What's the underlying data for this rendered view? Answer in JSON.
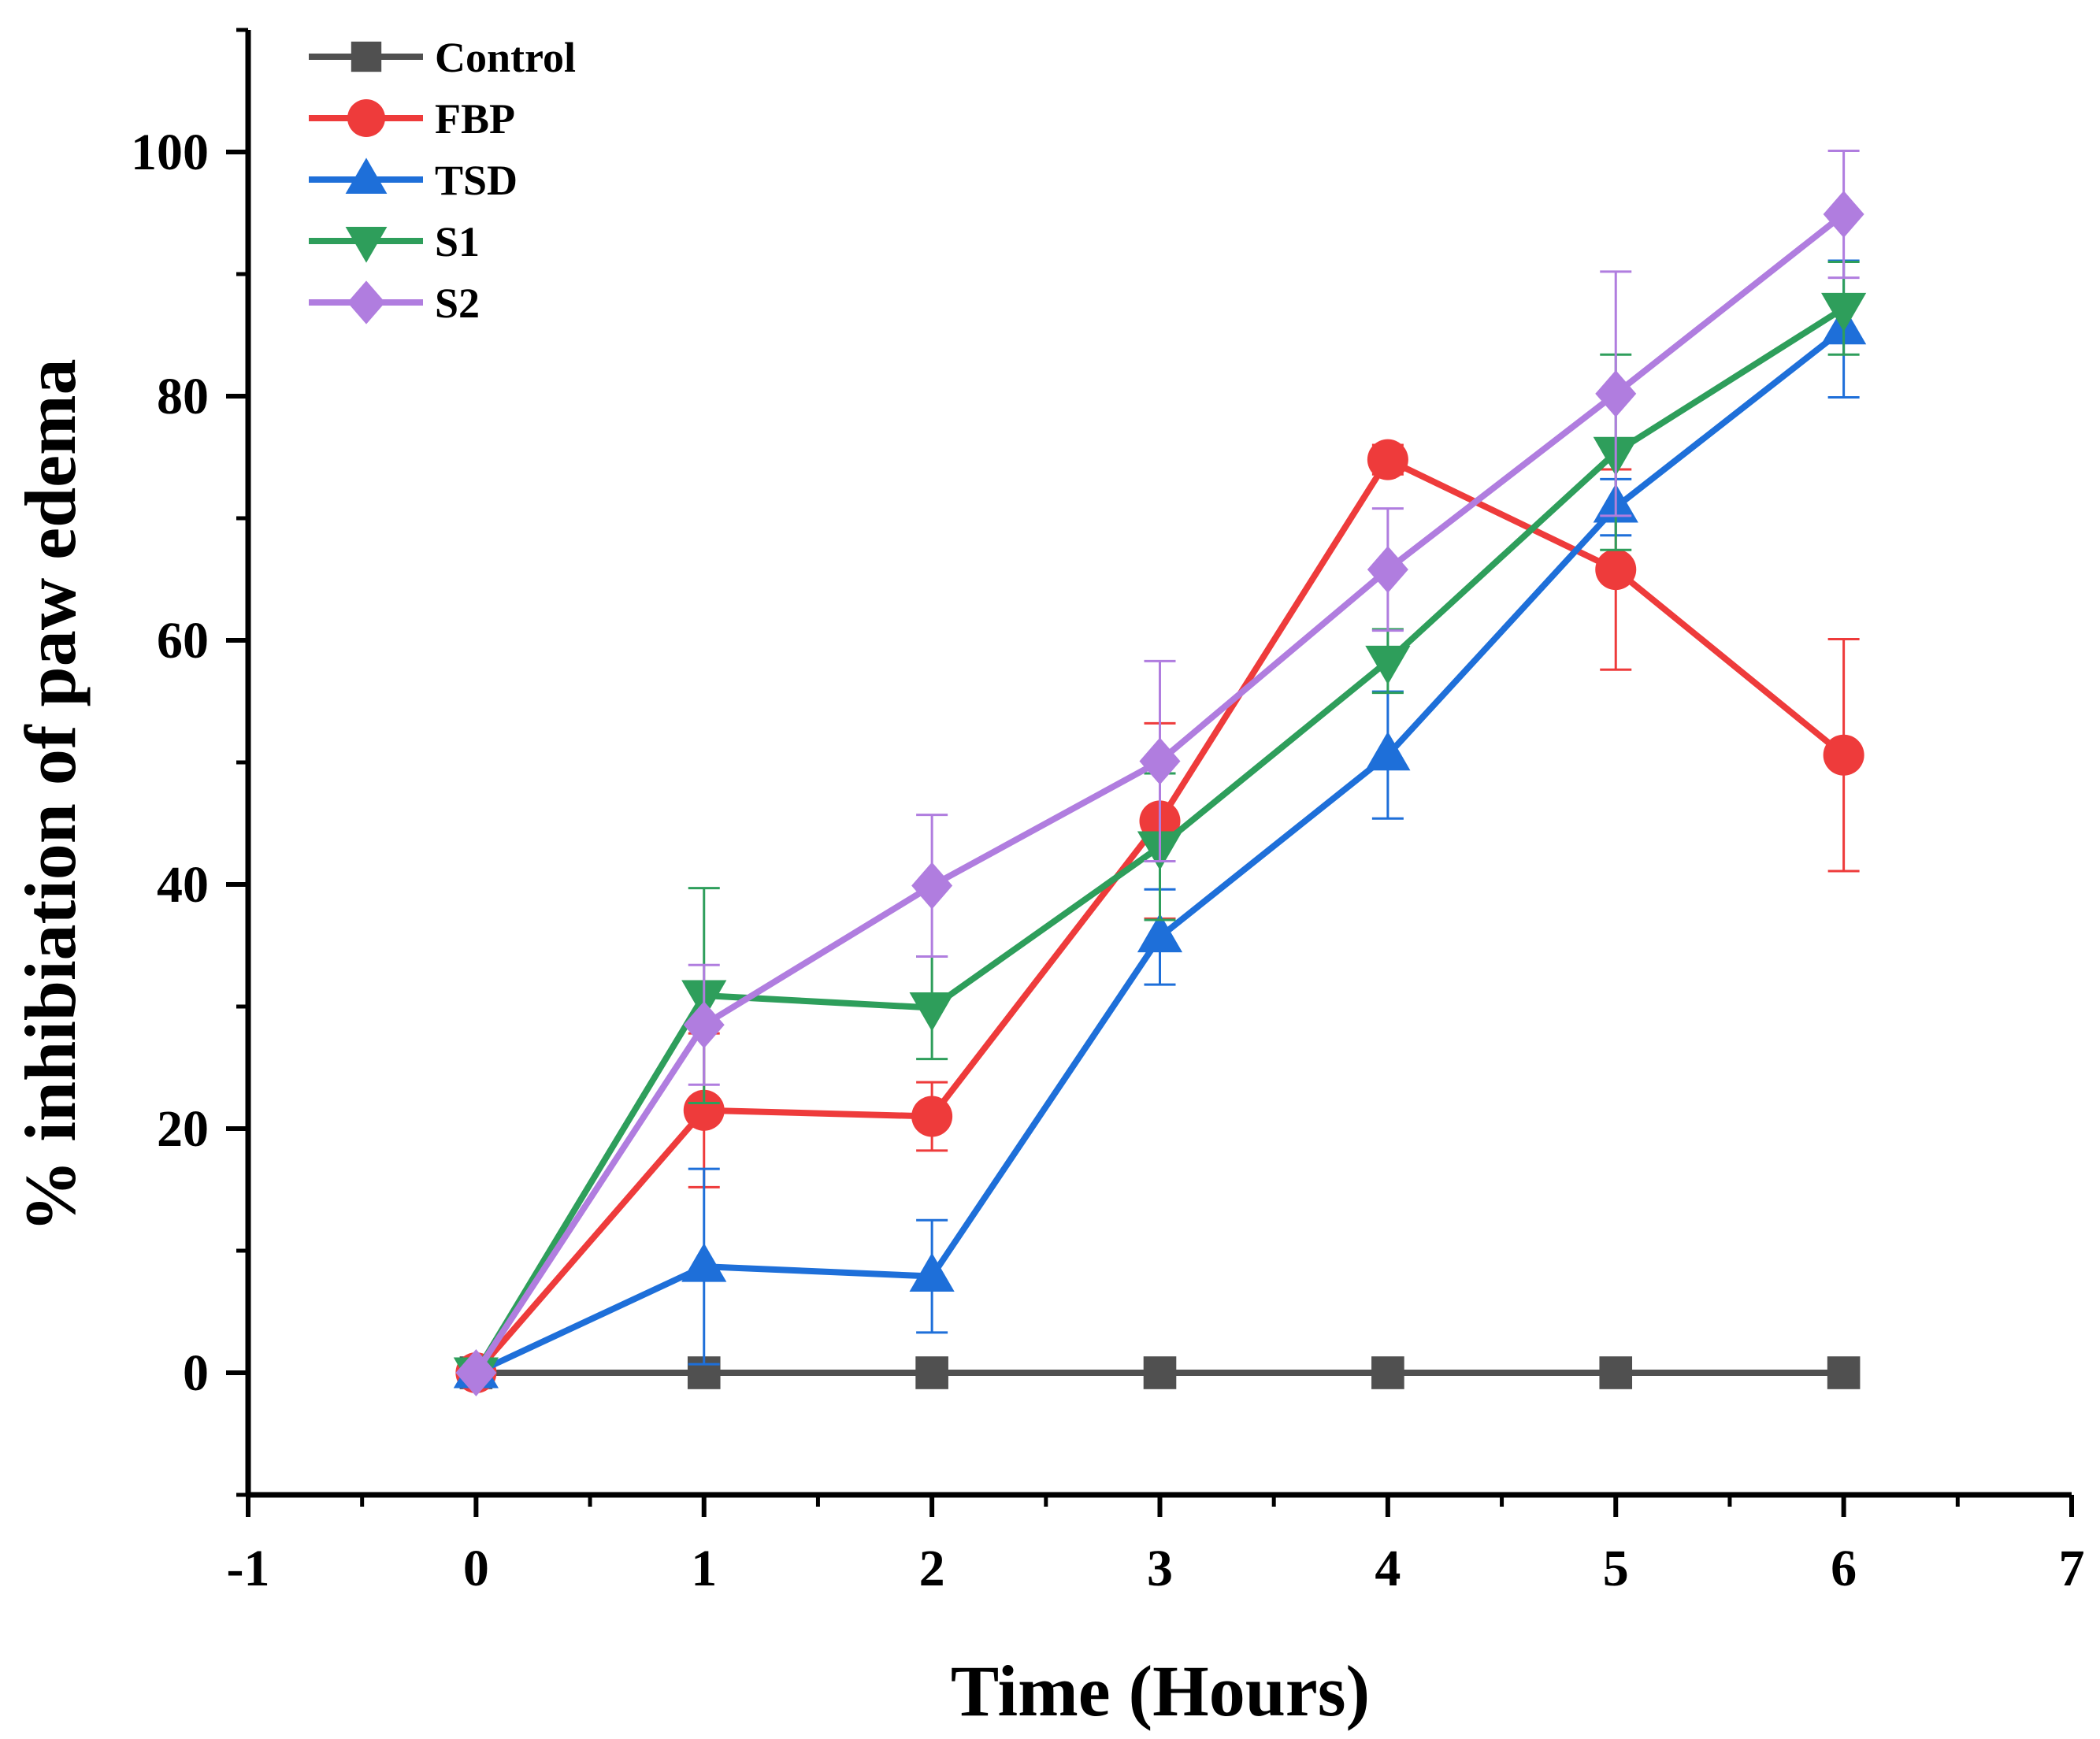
{
  "chart_data": {
    "type": "line",
    "title": "",
    "xlabel": "Time (Hours)",
    "ylabel": "% inhibiation of paw edema",
    "xlim": [
      -1,
      7
    ],
    "ylim": [
      -10,
      110
    ],
    "xticks": [
      "-1",
      "0",
      "1",
      "2",
      "3",
      "4",
      "5",
      "6",
      "7"
    ],
    "yticks": [
      "0",
      "20",
      "40",
      "60",
      "80",
      "100"
    ],
    "x": [
      0,
      1,
      2,
      3,
      4,
      5,
      6
    ],
    "legend_position": "top-left",
    "series": [
      {
        "name": "Control",
        "color": "#505050",
        "marker": "square",
        "values": [
          0,
          0,
          0,
          0,
          0,
          0,
          0
        ],
        "errors": [
          0,
          0,
          0,
          0,
          0,
          0,
          0
        ]
      },
      {
        "name": "FBP",
        "color": "#ee3b3b",
        "marker": "circle",
        "values": [
          0,
          21.5,
          21,
          45.2,
          74.8,
          65.8,
          50.6
        ],
        "errors": [
          0,
          6.3,
          2.8,
          8,
          1.2,
          8.2,
          9.5
        ]
      },
      {
        "name": "TSD",
        "color": "#1e6fd9",
        "marker": "triangle-up",
        "values": [
          0,
          8.7,
          7.9,
          35.7,
          50.6,
          70.9,
          85.5
        ],
        "errors": [
          0,
          8,
          4.6,
          3.9,
          5.2,
          2.3,
          5.6
        ]
      },
      {
        "name": "S1",
        "color": "#2e9e5b",
        "marker": "triangle-down",
        "values": [
          0,
          30.9,
          29.9,
          43.1,
          58.3,
          75.4,
          87.2
        ],
        "errors": [
          0,
          8.8,
          4.2,
          6,
          2.6,
          8,
          3.8
        ]
      },
      {
        "name": "S2",
        "color": "#b07ddf",
        "marker": "diamond",
        "values": [
          0,
          28.5,
          39.9,
          50.1,
          65.8,
          80.2,
          94.9
        ],
        "errors": [
          0,
          4.9,
          5.8,
          8.2,
          5,
          10,
          5.2
        ]
      }
    ]
  }
}
